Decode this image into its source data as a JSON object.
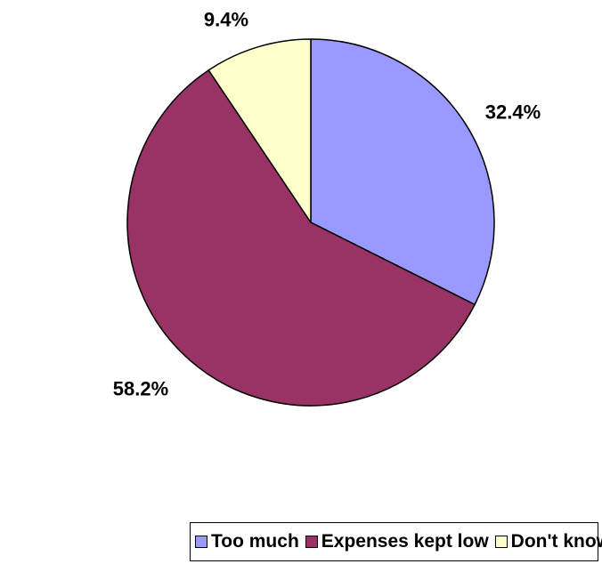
{
  "chart_data": {
    "type": "pie",
    "title": "",
    "slices": [
      {
        "name": "Too much",
        "value": 32.4,
        "label": "32.4%",
        "color": "#9999ff"
      },
      {
        "name": "Expenses kept low",
        "value": 58.2,
        "label": "58.2%",
        "color": "#993366"
      },
      {
        "name": "Don't know",
        "value": 9.4,
        "label": "9.4%",
        "color": "#ffffcc"
      }
    ],
    "start_angle": "12 o'clock",
    "direction": "clockwise",
    "legend_position": "bottom-right"
  }
}
